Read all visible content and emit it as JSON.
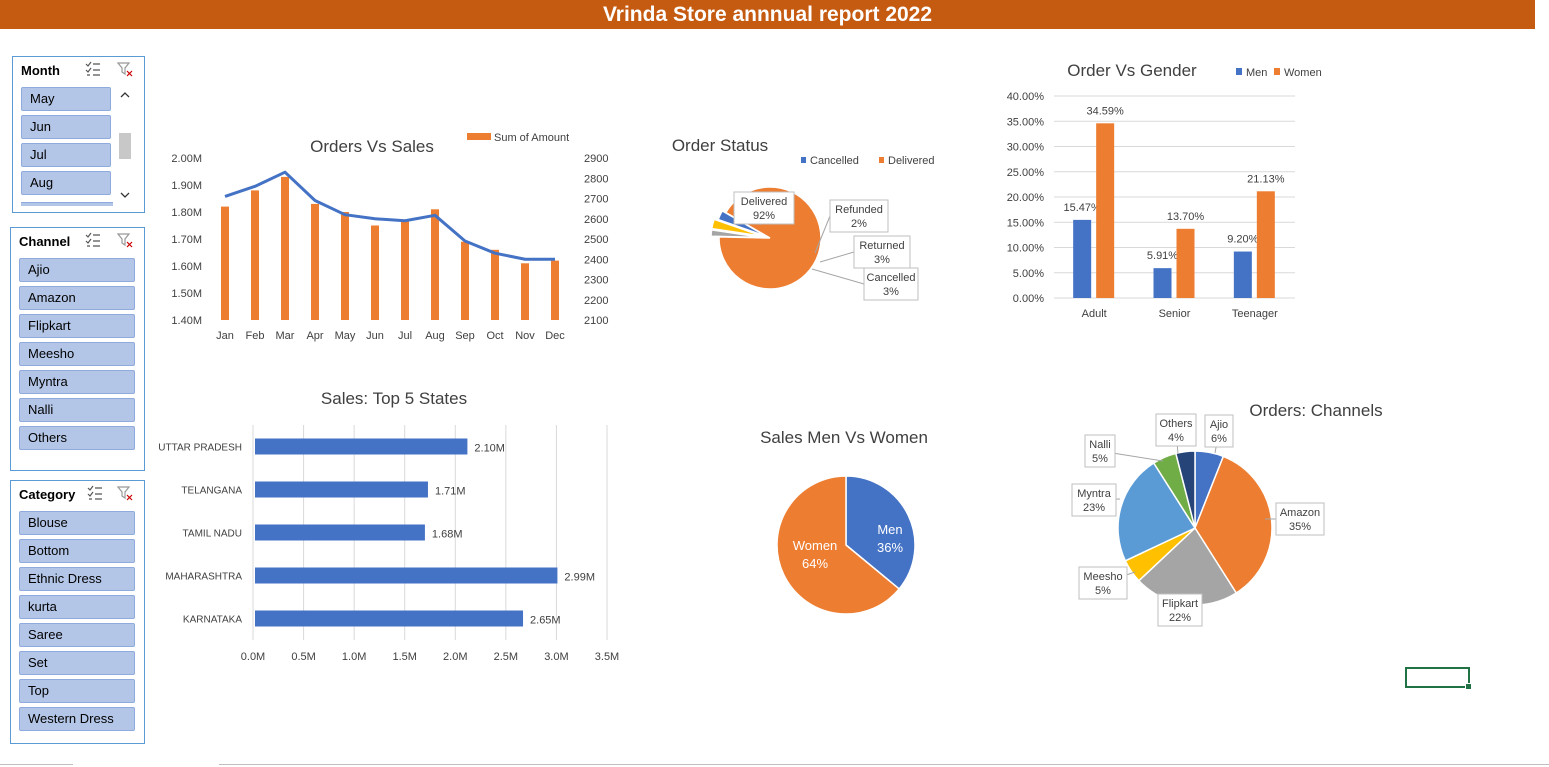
{
  "report_title": "Vrinda Store annnual report 2022",
  "slicers": {
    "month": {
      "title": "Month",
      "items": [
        "May",
        "Jun",
        "Jul",
        "Aug"
      ]
    },
    "channel": {
      "title": "Channel",
      "items": [
        "Ajio",
        "Amazon",
        "Flipkart",
        "Meesho",
        "Myntra",
        "Nalli",
        "Others"
      ]
    },
    "category": {
      "title": "Category",
      "items": [
        "Blouse",
        "Bottom",
        "Ethnic Dress",
        "kurta",
        "Saree",
        "Set",
        "Top",
        "Western Dress"
      ]
    }
  },
  "colors": {
    "orange": "#ed7d31",
    "blue": "#4472c4",
    "gray": "#a5a5a5",
    "yellow": "#ffc000",
    "lightblue": "#5b9bd5",
    "green": "#70ad47",
    "navy": "#264478",
    "banner": "#c55a11"
  },
  "chart_data": [
    {
      "type": "bar",
      "title": "Orders Vs Sales",
      "categories": [
        "Jan",
        "Feb",
        "Mar",
        "Apr",
        "May",
        "Jun",
        "Jul",
        "Aug",
        "Sep",
        "Oct",
        "Nov",
        "Dec"
      ],
      "series": [
        {
          "name": "Sum of Amount",
          "kind": "column",
          "axis": "left",
          "values": [
            1.82,
            1.88,
            1.93,
            1.83,
            1.8,
            1.75,
            1.77,
            1.81,
            1.69,
            1.66,
            1.61,
            1.62
          ]
        },
        {
          "kind": "line",
          "axis": "right",
          "values": [
            2710,
            2760,
            2830,
            2690,
            2620,
            2600,
            2590,
            2617,
            2490,
            2430,
            2400,
            2400
          ]
        }
      ],
      "left_ticks": [
        "2.00M",
        "1.90M",
        "1.80M",
        "1.70M",
        "1.60M",
        "1.50M",
        "1.40M"
      ],
      "right_ticks": [
        "2900",
        "2800",
        "2700",
        "2600",
        "2500",
        "2400",
        "2300",
        "2200",
        "2100"
      ],
      "ylim_left": [
        1.4,
        2.0
      ],
      "ylim_right": [
        2100,
        2900
      ],
      "legend": "top-right"
    },
    {
      "type": "pie",
      "title": "Order Status",
      "legend_entries": [
        "Cancelled",
        "Delivered"
      ],
      "slices": [
        {
          "label": "Delivered",
          "value": 92,
          "text": "92%"
        },
        {
          "label": "Refunded",
          "value": 2,
          "text": "2%"
        },
        {
          "label": "Returned",
          "value": 3,
          "text": "3%"
        },
        {
          "label": "Cancelled",
          "value": 3,
          "text": "3%"
        }
      ],
      "legend": "top-right"
    },
    {
      "type": "bar",
      "title": "Order Vs Gender",
      "categories": [
        "Adult",
        "Senior",
        "Teenager"
      ],
      "series": [
        {
          "name": "Men",
          "values": [
            15.47,
            5.91,
            9.2
          ],
          "labels": [
            "15.47%",
            "5.91%",
            "9.20%"
          ]
        },
        {
          "name": "Women",
          "values": [
            34.59,
            13.7,
            21.13
          ],
          "labels": [
            "34.59%",
            "13.70%",
            "21.13%"
          ]
        }
      ],
      "y_ticks": [
        "40.00%",
        "35.00%",
        "30.00%",
        "25.00%",
        "20.00%",
        "15.00%",
        "10.00%",
        "5.00%",
        "0.00%"
      ],
      "ylim": [
        0,
        40
      ],
      "legend": "top"
    },
    {
      "type": "bar",
      "orientation": "horizontal",
      "title": "Sales: Top 5 States",
      "categories": [
        "UTTAR PRADESH",
        "TELANGANA",
        "TAMIL NADU",
        "MAHARASHTRA",
        "KARNATAKA"
      ],
      "values": [
        2.1,
        1.71,
        1.68,
        2.99,
        2.65
      ],
      "labels": [
        "2.10M",
        "1.71M",
        "1.68M",
        "2.99M",
        "2.65M"
      ],
      "x_ticks": [
        "0.0M",
        "0.5M",
        "1.0M",
        "1.5M",
        "2.0M",
        "2.5M",
        "3.0M",
        "3.5M"
      ],
      "xlim": [
        0,
        3.5
      ]
    },
    {
      "type": "pie",
      "title": "Sales Men Vs Women",
      "slices": [
        {
          "label": "Men",
          "value": 36,
          "text": "36%"
        },
        {
          "label": "Women",
          "value": 64,
          "text": "64%"
        }
      ]
    },
    {
      "type": "pie",
      "title": "Orders: Channels",
      "slices": [
        {
          "label": "Ajio",
          "value": 6,
          "text": "6%"
        },
        {
          "label": "Amazon",
          "value": 35,
          "text": "35%"
        },
        {
          "label": "Flipkart",
          "value": 22,
          "text": "22%"
        },
        {
          "label": "Meesho",
          "value": 5,
          "text": "5%"
        },
        {
          "label": "Myntra",
          "value": 23,
          "text": "23%"
        },
        {
          "label": "Nalli",
          "value": 5,
          "text": "5%"
        },
        {
          "label": "Others",
          "value": 4,
          "text": "4%"
        }
      ]
    }
  ]
}
